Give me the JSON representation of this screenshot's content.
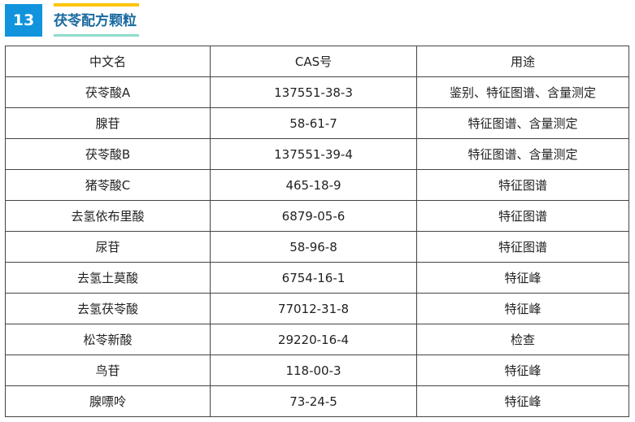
{
  "header": {
    "number": "13",
    "title": "茯苓配方颗粒",
    "colors": {
      "badge": "#1193dd",
      "title": "#1a6aa0",
      "top_bar": "#fcc500",
      "bottom_bar": "#8fdccb"
    }
  },
  "table": {
    "columns": [
      "中文名",
      "CAS号",
      "用途"
    ],
    "rows": [
      [
        "茯苓酸A",
        "137551-38-3",
        "鉴别、特征图谱、含量测定"
      ],
      [
        "腺苷",
        "58-61-7",
        "特征图谱、含量测定"
      ],
      [
        "茯苓酸B",
        "137551-39-4",
        "特征图谱、含量测定"
      ],
      [
        "猪苓酸C",
        "465-18-9",
        "特征图谱"
      ],
      [
        "去氢依布里酸",
        "6879-05-6",
        "特征图谱"
      ],
      [
        "尿苷",
        "58-96-8",
        "特征图谱"
      ],
      [
        "去氢土莫酸",
        "6754-16-1",
        "特征峰"
      ],
      [
        "去氢茯苓酸",
        "77012-31-8",
        "特征峰"
      ],
      [
        "松苓新酸",
        "29220-16-4",
        "检查"
      ],
      [
        "鸟苷",
        "118-00-3",
        "特征峰"
      ],
      [
        "腺嘌呤",
        "73-24-5",
        "特征峰"
      ]
    ]
  }
}
